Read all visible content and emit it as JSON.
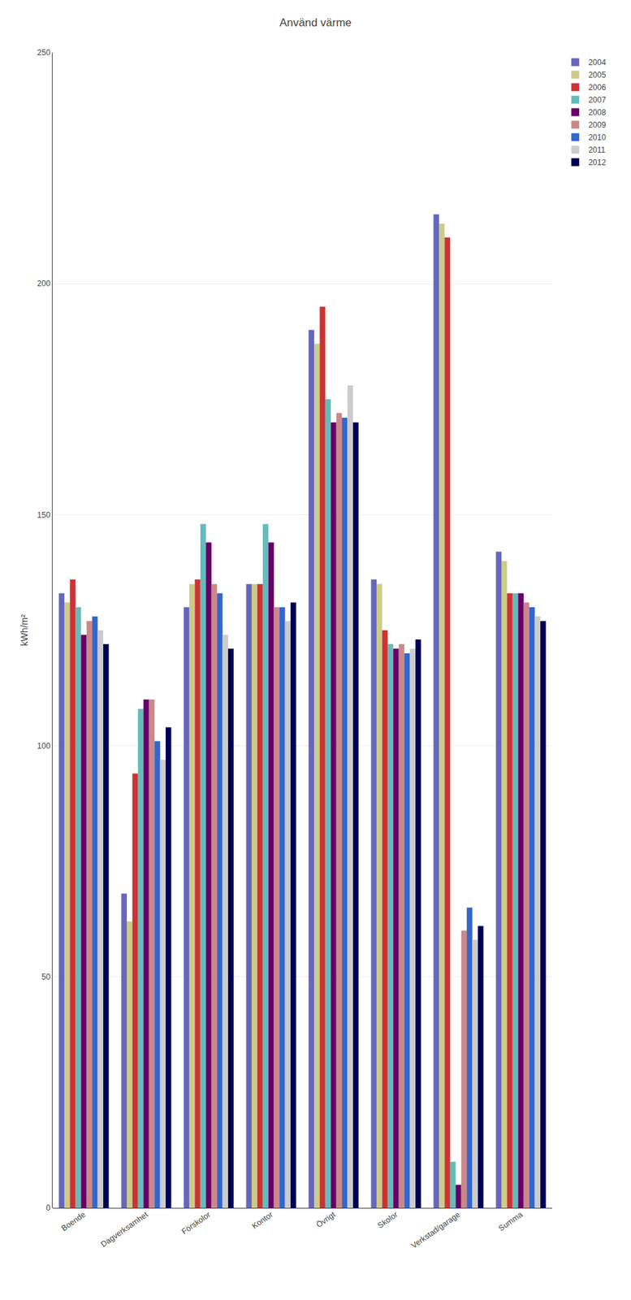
{
  "chart_data": {
    "type": "bar",
    "title": "Använd värme",
    "ylabel": "kWh/m²",
    "categories": [
      "Boende",
      "Dagverksamhet",
      "Förskolor",
      "Kontor",
      "Övrigt",
      "Skolor",
      "Verkstad/garage",
      "Summa"
    ],
    "series": [
      {
        "name": "2004",
        "color": "#6666bb",
        "values": [
          133,
          68,
          130,
          135,
          190,
          136,
          215,
          142
        ]
      },
      {
        "name": "2005",
        "color": "#cccc88",
        "values": [
          131,
          62,
          135,
          135,
          187,
          135,
          213,
          140
        ]
      },
      {
        "name": "2006",
        "color": "#cc3333",
        "values": [
          136,
          94,
          136,
          135,
          195,
          125,
          210,
          133
        ]
      },
      {
        "name": "2007",
        "color": "#66bbbb",
        "values": [
          130,
          108,
          148,
          148,
          175,
          122,
          10,
          133
        ]
      },
      {
        "name": "2008",
        "color": "#660066",
        "values": [
          124,
          110,
          144,
          144,
          170,
          121,
          5,
          133
        ]
      },
      {
        "name": "2009",
        "color": "#cc8888",
        "values": [
          127,
          110,
          135,
          130,
          172,
          122,
          60,
          131
        ]
      },
      {
        "name": "2010",
        "color": "#3366cc",
        "values": [
          128,
          101,
          133,
          130,
          171,
          120,
          65,
          130
        ]
      },
      {
        "name": "2011",
        "color": "#cccccc",
        "values": [
          125,
          97,
          124,
          127,
          178,
          121,
          58,
          128
        ]
      },
      {
        "name": "2012",
        "color": "#000055",
        "values": [
          122,
          104,
          121,
          131,
          170,
          123,
          61,
          127
        ]
      }
    ],
    "ylim": [
      0,
      250
    ],
    "yticks": [
      0,
      50,
      100,
      150,
      200,
      250
    ],
    "grid": true,
    "legend": "right"
  }
}
